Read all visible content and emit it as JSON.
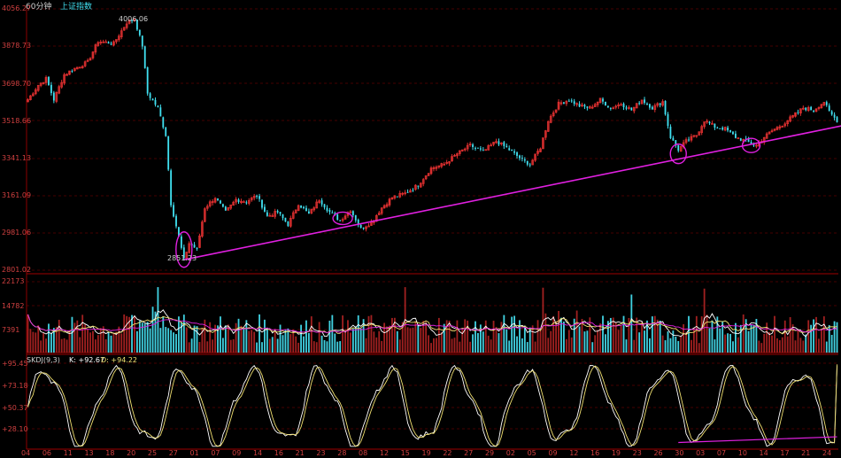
{
  "header": {
    "period": "60分钟",
    "symbol": "上证指数"
  },
  "price_axis": [
    "4056.27",
    "3878.73",
    "3698.70",
    "3518.66",
    "3341.13",
    "3161.09",
    "2981.06",
    "2801.02"
  ],
  "volume_axis": [
    "22173",
    "14782",
    "7391"
  ],
  "kdj": {
    "label": "SKDJ(9,3)",
    "k_label": "K: +92.67",
    "d_label": "D: +94.22"
  },
  "kdj_axis": [
    "+95.45",
    "+73.18",
    "+50.37",
    "+28.10"
  ],
  "annotations": {
    "high": "4006.06",
    "low": "2851.23"
  },
  "x_dates": [
    "04",
    "06",
    "11",
    "13",
    "18",
    "20",
    "25",
    "27",
    "01",
    "07",
    "09",
    "14",
    "16",
    "21",
    "23",
    "28",
    "08",
    "12",
    "15",
    "19",
    "22",
    "27",
    "29",
    "02",
    "05",
    "09",
    "12",
    "16",
    "19",
    "23",
    "26",
    "30",
    "03",
    "07",
    "10",
    "14",
    "17",
    "21",
    "24"
  ],
  "colors": {
    "up": "#e03030",
    "down": "#40e0f0",
    "trend": "#e020e0",
    "k_line": "#ffffff",
    "d_line": "#f0e070",
    "grid": "#8b0000",
    "axis_text": "#d04040"
  },
  "chart_data": {
    "type": "candlestick",
    "title": "上证指数 60分钟",
    "price_range": [
      2801.02,
      4056.27
    ],
    "anchors": [
      [
        0,
        3620
      ],
      [
        4,
        3690
      ],
      [
        7,
        3720
      ],
      [
        10,
        3620
      ],
      [
        14,
        3740
      ],
      [
        18,
        3770
      ],
      [
        23,
        3800
      ],
      [
        27,
        3900
      ],
      [
        33,
        3890
      ],
      [
        38,
        3990
      ],
      [
        41,
        4006.06
      ],
      [
        44,
        3880
      ],
      [
        46,
        3650
      ],
      [
        50,
        3580
      ],
      [
        53,
        3450
      ],
      [
        55,
        3120
      ],
      [
        58,
        2960
      ],
      [
        60,
        2851.23
      ],
      [
        62,
        2930
      ],
      [
        65,
        2900
      ],
      [
        68,
        3100
      ],
      [
        72,
        3150
      ],
      [
        76,
        3080
      ],
      [
        80,
        3140
      ],
      [
        84,
        3130
      ],
      [
        88,
        3160
      ],
      [
        92,
        3060
      ],
      [
        96,
        3080
      ],
      [
        100,
        3020
      ],
      [
        104,
        3120
      ],
      [
        108,
        3070
      ],
      [
        112,
        3140
      ],
      [
        116,
        3080
      ],
      [
        120,
        3040
      ],
      [
        124,
        3090
      ],
      [
        128,
        3000
      ],
      [
        132,
        3030
      ],
      [
        136,
        3100
      ],
      [
        140,
        3150
      ],
      [
        145,
        3170
      ],
      [
        150,
        3210
      ],
      [
        155,
        3290
      ],
      [
        160,
        3310
      ],
      [
        165,
        3360
      ],
      [
        170,
        3400
      ],
      [
        175,
        3370
      ],
      [
        180,
        3420
      ],
      [
        185,
        3380
      ],
      [
        190,
        3330
      ],
      [
        193,
        3310
      ],
      [
        197,
        3390
      ],
      [
        200,
        3520
      ],
      [
        204,
        3600
      ],
      [
        208,
        3620
      ],
      [
        212,
        3590
      ],
      [
        216,
        3580
      ],
      [
        220,
        3620
      ],
      [
        224,
        3580
      ],
      [
        228,
        3600
      ],
      [
        232,
        3570
      ],
      [
        236,
        3620
      ],
      [
        240,
        3580
      ],
      [
        244,
        3610
      ],
      [
        247,
        3440
      ],
      [
        250,
        3380
      ],
      [
        253,
        3420
      ],
      [
        257,
        3450
      ],
      [
        260,
        3520
      ],
      [
        264,
        3490
      ],
      [
        268,
        3480
      ],
      [
        272,
        3440
      ],
      [
        276,
        3420
      ],
      [
        280,
        3400
      ],
      [
        283,
        3440
      ],
      [
        286,
        3470
      ],
      [
        290,
        3500
      ],
      [
        294,
        3540
      ],
      [
        298,
        3580
      ],
      [
        302,
        3570
      ],
      [
        306,
        3610
      ],
      [
        308,
        3560
      ],
      [
        311,
        3520
      ]
    ],
    "trendlines": [
      [
        [
          60,
          2851.23
        ],
        [
          315,
          3500
        ]
      ]
    ],
    "highlighted_points": [
      [
        60,
        2900
      ],
      [
        121,
        3050
      ],
      [
        250,
        3360
      ],
      [
        278,
        3400
      ]
    ],
    "volume_range": [
      0,
      22173
    ],
    "kdj_range": [
      5,
      95.45
    ],
    "series": [
      {
        "name": "K",
        "latest": 92.67
      },
      {
        "name": "D",
        "latest": 94.22
      }
    ]
  }
}
